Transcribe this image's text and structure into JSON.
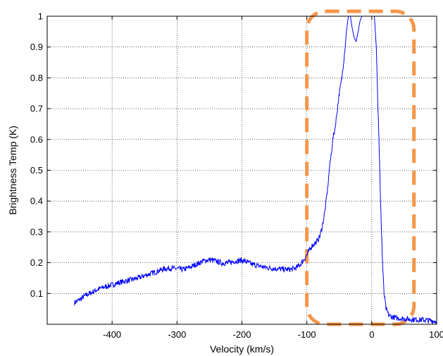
{
  "chart_data": {
    "type": "line",
    "xlabel": "Velocity (km/s)",
    "ylabel": "Brightness Temp (K)",
    "xlim": [
      -500,
      100
    ],
    "ylim": [
      0,
      1
    ],
    "xticks": [
      -400,
      -300,
      -200,
      -100,
      0,
      100
    ],
    "xtick_labels": [
      "-400",
      "-300",
      "-200",
      "-100",
      "0",
      "100"
    ],
    "yticks": [
      0.1,
      0.2,
      0.3,
      0.4,
      0.5,
      0.6,
      0.7,
      0.8,
      0.9,
      1
    ],
    "ytick_labels": [
      "0.1",
      "0.2",
      "0.3",
      "0.4",
      "0.5",
      "0.6",
      "0.7",
      "0.8",
      "0.9",
      "1"
    ],
    "grid": true,
    "line_color": "#0000ff",
    "highlight_color": "#f4964a",
    "highlight_region": {
      "x": [
        -100,
        65
      ],
      "y": [
        0,
        1
      ]
    },
    "series": [
      {
        "values": [
          [
            -458,
            0.07
          ],
          [
            -450,
            0.08
          ],
          [
            -440,
            0.095
          ],
          [
            -430,
            0.105
          ],
          [
            -420,
            0.115
          ],
          [
            -410,
            0.122
          ],
          [
            -400,
            0.128
          ],
          [
            -390,
            0.135
          ],
          [
            -380,
            0.14
          ],
          [
            -370,
            0.145
          ],
          [
            -360,
            0.15
          ],
          [
            -350,
            0.158
          ],
          [
            -340,
            0.165
          ],
          [
            -330,
            0.172
          ],
          [
            -320,
            0.18
          ],
          [
            -310,
            0.182
          ],
          [
            -300,
            0.18
          ],
          [
            -290,
            0.178
          ],
          [
            -280,
            0.185
          ],
          [
            -270,
            0.195
          ],
          [
            -260,
            0.205
          ],
          [
            -250,
            0.21
          ],
          [
            -240,
            0.205
          ],
          [
            -230,
            0.198
          ],
          [
            -220,
            0.2
          ],
          [
            -210,
            0.205
          ],
          [
            -200,
            0.208
          ],
          [
            -195,
            0.205
          ],
          [
            -185,
            0.195
          ],
          [
            -175,
            0.19
          ],
          [
            -165,
            0.185
          ],
          [
            -155,
            0.182
          ],
          [
            -145,
            0.18
          ],
          [
            -135,
            0.178
          ],
          [
            -125,
            0.178
          ],
          [
            -118,
            0.182
          ],
          [
            -112,
            0.19
          ],
          [
            -106,
            0.205
          ],
          [
            -100,
            0.225
          ],
          [
            -96,
            0.24
          ],
          [
            -92,
            0.255
          ],
          [
            -88,
            0.262
          ],
          [
            -84,
            0.27
          ],
          [
            -80,
            0.285
          ],
          [
            -76,
            0.32
          ],
          [
            -72,
            0.37
          ],
          [
            -68,
            0.44
          ],
          [
            -65,
            0.51
          ],
          [
            -62,
            0.56
          ],
          [
            -60,
            0.6
          ],
          [
            -57,
            0.63
          ],
          [
            -54,
            0.68
          ],
          [
            -50,
            0.75
          ],
          [
            -46,
            0.8
          ],
          [
            -42,
            0.88
          ],
          [
            -39,
            0.95
          ],
          [
            -36,
            1.0
          ],
          [
            -33,
            1.0
          ],
          [
            -30,
            0.96
          ],
          [
            -27,
            0.93
          ],
          [
            -24,
            0.918
          ],
          [
            -21,
            0.95
          ],
          [
            -18,
            0.985
          ],
          [
            -15,
            1.0
          ],
          [
            -8,
            1.0
          ],
          [
            -2,
            1.0
          ],
          [
            4,
            1.0
          ],
          [
            7,
            0.9
          ],
          [
            9,
            0.75
          ],
          [
            11,
            0.6
          ],
          [
            13,
            0.45
          ],
          [
            15,
            0.3
          ],
          [
            17,
            0.18
          ],
          [
            19,
            0.1
          ],
          [
            22,
            0.05
          ],
          [
            26,
            0.03
          ],
          [
            30,
            0.025
          ],
          [
            35,
            0.022
          ],
          [
            40,
            0.02
          ],
          [
            50,
            0.018
          ],
          [
            60,
            0.016
          ],
          [
            70,
            0.015
          ],
          [
            80,
            0.014
          ],
          [
            90,
            0.012
          ],
          [
            100,
            0.01
          ]
        ]
      }
    ]
  }
}
